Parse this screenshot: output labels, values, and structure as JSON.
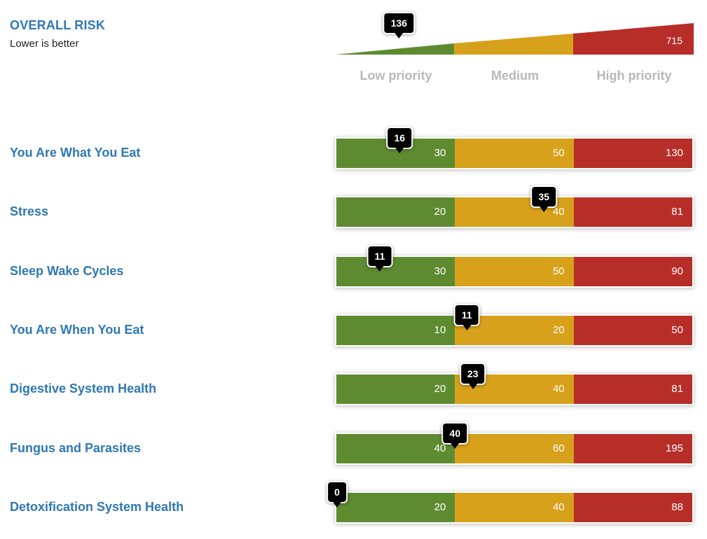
{
  "overall": {
    "title": "OVERALL RISK",
    "subtitle": "Lower is better",
    "score": 136,
    "max_label": "715",
    "max_value": 715,
    "priority_labels": [
      "Low priority",
      "Medium",
      "High priority"
    ]
  },
  "colors": {
    "low": "#5e8b30",
    "medium": "#d8a11b",
    "high": "#b72e28",
    "label": "#2f78b4",
    "priority_label": "#b8b8b8",
    "marker": "#000000"
  },
  "rows": [
    {
      "label": "You Are What You Eat",
      "score": 16,
      "thresholds": [
        30,
        50,
        130
      ]
    },
    {
      "label": "Stress",
      "score": 35,
      "thresholds": [
        20,
        40,
        81
      ]
    },
    {
      "label": "Sleep Wake Cycles",
      "score": 11,
      "thresholds": [
        30,
        50,
        90
      ]
    },
    {
      "label": "You Are When You Eat",
      "score": 11,
      "thresholds": [
        10,
        20,
        50
      ]
    },
    {
      "label": "Digestive System Health",
      "score": 23,
      "thresholds": [
        20,
        40,
        81
      ]
    },
    {
      "label": "Fungus and Parasites",
      "score": 40,
      "thresholds": [
        40,
        60,
        195
      ]
    },
    {
      "label": "Detoxification System Health",
      "score": 0,
      "thresholds": [
        20,
        40,
        88
      ]
    }
  ]
}
